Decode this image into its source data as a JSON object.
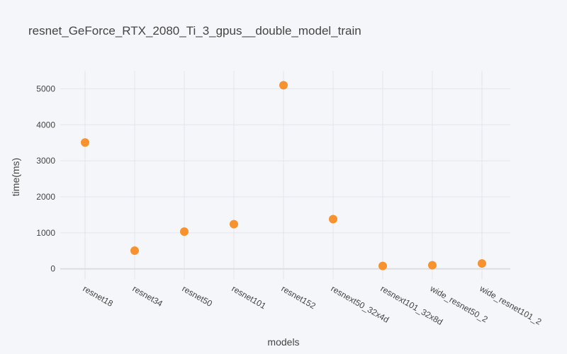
{
  "chart_data": {
    "type": "scatter",
    "title": "resnet_GeForce_RTX_2080_Ti_3_gpus__double_model_train",
    "xlabel": "models",
    "ylabel": "time(ms)",
    "categories": [
      "resnet18",
      "resnet34",
      "resnet50",
      "resnet101",
      "resnet152",
      "resnext50_32x4d",
      "resnext101_32x8d",
      "wide_resnet50_2",
      "wide_resnet101_2"
    ],
    "values": [
      3510,
      505,
      1035,
      1240,
      5100,
      1380,
      80,
      100,
      150
    ],
    "yticks": [
      0,
      1000,
      2000,
      3000,
      4000,
      5000
    ],
    "ylim": [
      -300,
      5500
    ],
    "grid": true,
    "color": "#f7922e"
  }
}
